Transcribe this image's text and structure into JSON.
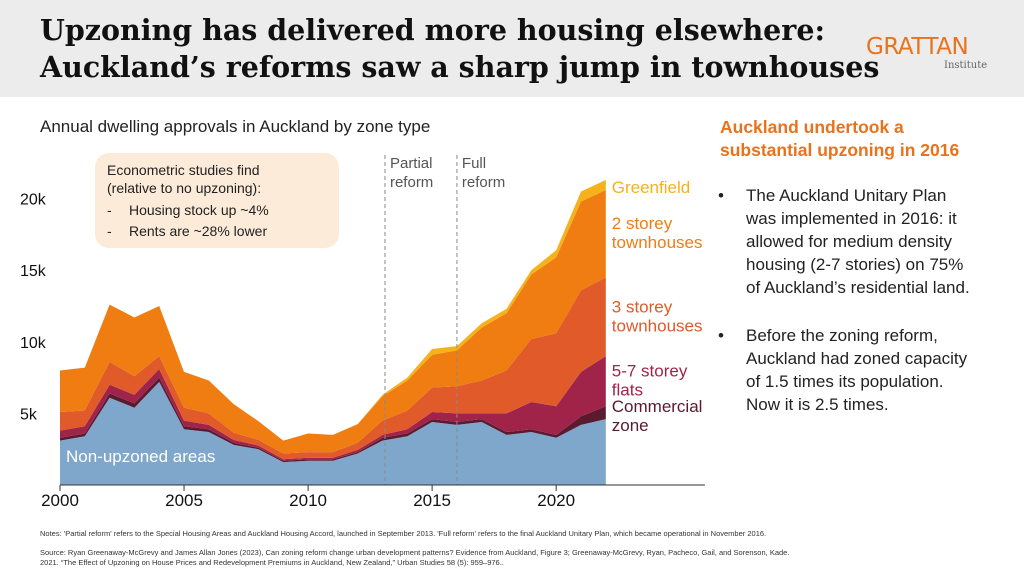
{
  "header": {
    "title_line1": "Upzoning has delivered more housing elsewhere:",
    "title_line2": "Auckland’s reforms saw a sharp jump in townhouses",
    "logo_main": "GRATTAN",
    "logo_sub": "Institute"
  },
  "subtitle": "Annual dwelling approvals in Auckland by zone type",
  "callout": {
    "line1": "Econometric studies find",
    "line2": "(relative to no upzoning):",
    "dash": "-",
    "bullet1": "Housing stock up ~4%",
    "bullet2": "Rents are ~28% lower"
  },
  "annotations": {
    "partial": [
      "Partial",
      "reform"
    ],
    "full": [
      "Full",
      "reform"
    ]
  },
  "right_panel": {
    "heading_line1": "Auckland undertook a",
    "heading_line2": "substantial upzoning in 2016",
    "bullet_symbol": "•",
    "b1": [
      "The Auckland Unitary Plan",
      "was implemented in 2016: it",
      "allowed for medium density",
      "housing (2-7 stories) on 75%",
      "of Auckland’s residential land."
    ],
    "b2": [
      "Before the zoning reform,",
      "Auckland had zoned capacity",
      "of 1.5 times its population.",
      "Now it is 2.5 times."
    ]
  },
  "notes": {
    "n1": "Notes: 'Partial reform' refers to the Special Housing Areas and Auckland Housing Accord, launched in September 2013. 'Full reform' refers to the final Auckland Unitary Plan, which became operational in November 2016.",
    "n2": "Source: Ryan Greenaway-McGrevy and James Allan Jones (2023), Can zoning reform change urban development patterns? Evidence from Auckland, Figure 3; Greenaway-McGrevy, Ryan, Pacheco, Gail, and  Sorenson, Kade.",
    "n3": "2021. “The Effect of Upzoning on House Prices and Redevelopment Premiums in Auckland, New Zealand,” Urban Studies 58 (5): 959–976.."
  },
  "chart_data": {
    "type": "area",
    "stacked": true,
    "title": "Annual dwelling approvals in Auckland by zone type",
    "xlabel": "",
    "ylabel": "",
    "xlim": [
      2000,
      2026
    ],
    "ylim": [
      0,
      22000
    ],
    "x_ticks": [
      2000,
      2005,
      2010,
      2015,
      2020
    ],
    "x_tick_labels": [
      "2000",
      "2005",
      "2010",
      "2015",
      "2020"
    ],
    "y_ticks": [
      5000,
      10000,
      15000,
      20000
    ],
    "y_tick_labels": [
      "5k",
      "10k",
      "15k",
      "20k"
    ],
    "x": [
      2000,
      2001,
      2002,
      2003,
      2004,
      2005,
      2006,
      2007,
      2008,
      2009,
      2010,
      2011,
      2012,
      2013,
      2014,
      2015,
      2016,
      2017,
      2018,
      2019,
      2020,
      2021,
      2022
    ],
    "series": [
      {
        "name": "Non-upzoned areas",
        "color": "#7ea7cb",
        "label_lines": [
          "Non-upzoned areas"
        ],
        "values": [
          3100,
          3400,
          6100,
          5400,
          7200,
          3900,
          3700,
          2800,
          2500,
          1600,
          1700,
          1700,
          2200,
          3100,
          3400,
          4400,
          4200,
          4400,
          3500,
          3700,
          3300,
          4200,
          4600
        ]
      },
      {
        "name": "Commercial zone",
        "color": "#5a1a30",
        "label_lines": [
          "Commercial",
          "zone"
        ],
        "values": [
          200,
          200,
          300,
          300,
          300,
          200,
          200,
          150,
          100,
          100,
          100,
          100,
          100,
          200,
          200,
          200,
          200,
          200,
          200,
          200,
          200,
          600,
          900
        ]
      },
      {
        "name": "5-7 storey flats",
        "color": "#a0244a",
        "label_lines": [
          "5-7 storey",
          "flats"
        ],
        "values": [
          500,
          500,
          600,
          600,
          600,
          400,
          300,
          200,
          150,
          100,
          100,
          100,
          150,
          200,
          300,
          500,
          600,
          400,
          1300,
          1900,
          2000,
          3100,
          3500
        ]
      },
      {
        "name": "3 storey townhouses",
        "color": "#e05a2a",
        "label_lines": [
          "3 storey",
          "townhouses"
        ],
        "values": [
          1300,
          1100,
          1600,
          1300,
          900,
          900,
          800,
          500,
          400,
          400,
          400,
          400,
          500,
          1000,
          1300,
          1700,
          1900,
          2300,
          3000,
          4400,
          5100,
          5700,
          5500
        ]
      },
      {
        "name": "2 storey townhouses",
        "color": "#f07d12",
        "label_lines": [
          "2 storey",
          "townhouses"
        ],
        "values": [
          2900,
          3000,
          4000,
          4100,
          3500,
          2500,
          2300,
          2000,
          1300,
          900,
          1300,
          1200,
          1300,
          1700,
          2100,
          2300,
          2500,
          3700,
          4000,
          4500,
          5300,
          6200,
          6100
        ]
      },
      {
        "name": "Greenfield",
        "color": "#f6b21a",
        "label_lines": [
          "Greenfield"
        ],
        "values": [
          0,
          0,
          0,
          0,
          0,
          0,
          0,
          0,
          0,
          0,
          0,
          0,
          0,
          100,
          200,
          400,
          300,
          300,
          300,
          300,
          500,
          700,
          700
        ]
      }
    ],
    "reference_lines": [
      {
        "x": 2013.1,
        "label": "Partial reform"
      },
      {
        "x": 2016.0,
        "label": "Full reform"
      }
    ]
  }
}
